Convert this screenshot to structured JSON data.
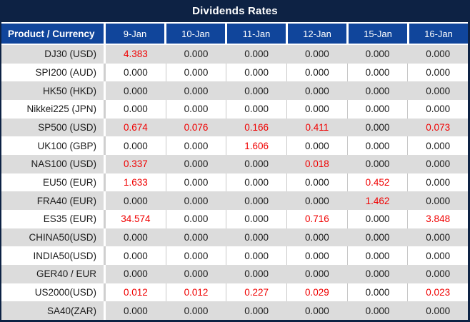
{
  "colors": {
    "navy": "#0D2244",
    "header_blue": "#10459B",
    "stripe_gray": "#DCDCDC",
    "value_red": "#F00000"
  },
  "chart_data": {
    "type": "table",
    "title": "Dividends Rates",
    "columns": [
      "Product / Currency",
      "9-Jan",
      "10-Jan",
      "11-Jan",
      "12-Jan",
      "15-Jan",
      "16-Jan"
    ],
    "rows": [
      {
        "product": "DJ30 (USD)",
        "values": [
          "4.383",
          "0.000",
          "0.000",
          "0.000",
          "0.000",
          "0.000"
        ]
      },
      {
        "product": "SPI200 (AUD)",
        "values": [
          "0.000",
          "0.000",
          "0.000",
          "0.000",
          "0.000",
          "0.000"
        ]
      },
      {
        "product": "HK50 (HKD)",
        "values": [
          "0.000",
          "0.000",
          "0.000",
          "0.000",
          "0.000",
          "0.000"
        ]
      },
      {
        "product": "Nikkei225 (JPN)",
        "values": [
          "0.000",
          "0.000",
          "0.000",
          "0.000",
          "0.000",
          "0.000"
        ]
      },
      {
        "product": "SP500 (USD)",
        "values": [
          "0.674",
          "0.076",
          "0.166",
          "0.411",
          "0.000",
          "0.073"
        ]
      },
      {
        "product": "UK100 (GBP)",
        "values": [
          "0.000",
          "0.000",
          "1.606",
          "0.000",
          "0.000",
          "0.000"
        ]
      },
      {
        "product": "NAS100 (USD)",
        "values": [
          "0.337",
          "0.000",
          "0.000",
          "0.018",
          "0.000",
          "0.000"
        ]
      },
      {
        "product": "EU50 (EUR)",
        "values": [
          "1.633",
          "0.000",
          "0.000",
          "0.000",
          "0.452",
          "0.000"
        ]
      },
      {
        "product": "FRA40 (EUR)",
        "values": [
          "0.000",
          "0.000",
          "0.000",
          "0.000",
          "1.462",
          "0.000"
        ]
      },
      {
        "product": "ES35 (EUR)",
        "values": [
          "34.574",
          "0.000",
          "0.000",
          "0.716",
          "0.000",
          "3.848"
        ]
      },
      {
        "product": "CHINA50(USD)",
        "values": [
          "0.000",
          "0.000",
          "0.000",
          "0.000",
          "0.000",
          "0.000"
        ]
      },
      {
        "product": "INDIA50(USD)",
        "values": [
          "0.000",
          "0.000",
          "0.000",
          "0.000",
          "0.000",
          "0.000"
        ]
      },
      {
        "product": "GER40 / EUR",
        "values": [
          "0.000",
          "0.000",
          "0.000",
          "0.000",
          "0.000",
          "0.000"
        ]
      },
      {
        "product": "US2000(USD)",
        "values": [
          "0.012",
          "0.012",
          "0.227",
          "0.029",
          "0.000",
          "0.023"
        ]
      },
      {
        "product": "SA40(ZAR)",
        "values": [
          "0.000",
          "0.000",
          "0.000",
          "0.000",
          "0.000",
          "0.000"
        ]
      }
    ]
  }
}
